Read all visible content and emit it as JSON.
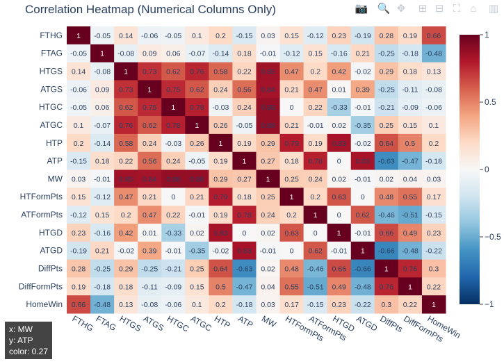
{
  "toolbar": {
    "items": [
      "camera-icon",
      "zoom-icon",
      "pan-icon",
      "zoom-in-icon",
      "zoom-out-icon",
      "autoscale-icon",
      "home-icon",
      "spikelines-icon"
    ]
  },
  "tooltip": {
    "x": "x: MW",
    "y": "y: ATP",
    "color": "color: 0.27"
  },
  "chart_data": {
    "type": "heatmap",
    "title": "Correlation Heatmap (Numerical Columns Only)",
    "labels": [
      "FTHG",
      "FTAG",
      "HTGS",
      "ATGS",
      "HTGC",
      "ATGC",
      "HTP",
      "ATP",
      "MW",
      "HTFormPts",
      "ATFormPts",
      "HTGD",
      "ATGD",
      "DiffPts",
      "DiffFormPts",
      "HomeWin"
    ],
    "z": [
      [
        1,
        -0.05,
        0.14,
        -0.06,
        -0.05,
        0.1,
        0.2,
        -0.15,
        0.03,
        0.15,
        -0.12,
        0.23,
        -0.19,
        0.28,
        0.19,
        0.66
      ],
      [
        -0.05,
        1,
        -0.08,
        0.09,
        0.06,
        -0.07,
        -0.14,
        0.18,
        -0.01,
        -0.12,
        0.15,
        -0.16,
        0.21,
        -0.25,
        -0.18,
        -0.48
      ],
      [
        0.14,
        -0.08,
        1,
        0.73,
        0.62,
        0.76,
        0.58,
        0.22,
        0.85,
        0.47,
        0.2,
        0.42,
        -0.02,
        0.29,
        0.18,
        0.13
      ],
      [
        -0.06,
        0.09,
        0.73,
        1,
        0.75,
        0.62,
        0.24,
        0.56,
        0.84,
        0.21,
        0.47,
        0.01,
        0.39,
        -0.25,
        -0.11,
        -0.08
      ],
      [
        -0.05,
        0.06,
        0.62,
        0.75,
        1,
        0.78,
        -0.03,
        0.24,
        0.88,
        0,
        0.22,
        -0.33,
        -0.01,
        -0.21,
        -0.09,
        -0.06
      ],
      [
        0.1,
        -0.07,
        0.76,
        0.62,
        0.78,
        1,
        0.26,
        -0.05,
        0.88,
        0.21,
        -0.01,
        0.02,
        -0.35,
        0.25,
        0.15,
        0.1
      ],
      [
        0.2,
        -0.14,
        0.58,
        0.24,
        -0.03,
        0.26,
        1,
        0.19,
        0.29,
        0.79,
        0.19,
        0.83,
        -0.02,
        0.64,
        0.5,
        0.2
      ],
      [
        -0.15,
        0.18,
        0.22,
        0.56,
        0.24,
        -0.05,
        0.19,
        1,
        0.27,
        0.18,
        0.78,
        0,
        0.83,
        -0.63,
        -0.47,
        -0.18
      ],
      [
        0.03,
        -0.01,
        0.85,
        0.84,
        0.88,
        0.88,
        0.29,
        0.27,
        1,
        0.25,
        0.24,
        0.02,
        -0.01,
        0.02,
        0.04,
        0.03
      ],
      [
        0.15,
        -0.12,
        0.47,
        0.21,
        0,
        0.21,
        0.79,
        0.18,
        0.25,
        1,
        0.2,
        0.63,
        0,
        0.48,
        0.55,
        0.17
      ],
      [
        -0.12,
        0.15,
        0.2,
        0.47,
        0.22,
        -0.01,
        0.19,
        0.78,
        0.24,
        0.2,
        1,
        0,
        0.62,
        -0.46,
        -0.51,
        -0.15
      ],
      [
        0.23,
        -0.16,
        0.42,
        0.01,
        -0.33,
        0.02,
        0.83,
        0,
        0.02,
        0.63,
        0,
        1,
        -0.01,
        0.66,
        0.49,
        0.23
      ],
      [
        -0.19,
        0.21,
        -0.02,
        0.39,
        -0.01,
        -0.35,
        -0.02,
        0.83,
        -0.01,
        0,
        0.62,
        -0.01,
        1,
        -0.66,
        -0.48,
        -0.22
      ],
      [
        0.28,
        -0.25,
        0.29,
        -0.25,
        -0.21,
        0.25,
        0.64,
        -0.63,
        0.02,
        0.48,
        -0.46,
        0.66,
        -0.66,
        1,
        0.76,
        0.3
      ],
      [
        0.19,
        -0.18,
        0.18,
        -0.11,
        -0.09,
        0.15,
        0.5,
        -0.47,
        0.04,
        0.55,
        -0.51,
        0.49,
        -0.48,
        0.76,
        1,
        0.22
      ],
      [
        0.66,
        -0.48,
        0.13,
        -0.08,
        -0.06,
        0.1,
        0.2,
        -0.18,
        0.03,
        0.17,
        -0.15,
        0.23,
        -0.22,
        0.3,
        0.22,
        1
      ]
    ],
    "zrange": [
      -1,
      1
    ],
    "colorscale": [
      "#053061",
      "#2166ac",
      "#4393c3",
      "#92c5de",
      "#d1e5f0",
      "#f7f7f7",
      "#fddbc7",
      "#f4a582",
      "#d6604d",
      "#b2182b",
      "#67001f"
    ],
    "colorbar_ticks": [
      "1",
      "0.5",
      "0",
      "−0.5",
      "−1"
    ],
    "colorbar_tick_values": [
      1,
      0.5,
      0,
      -0.5,
      -1
    ]
  }
}
